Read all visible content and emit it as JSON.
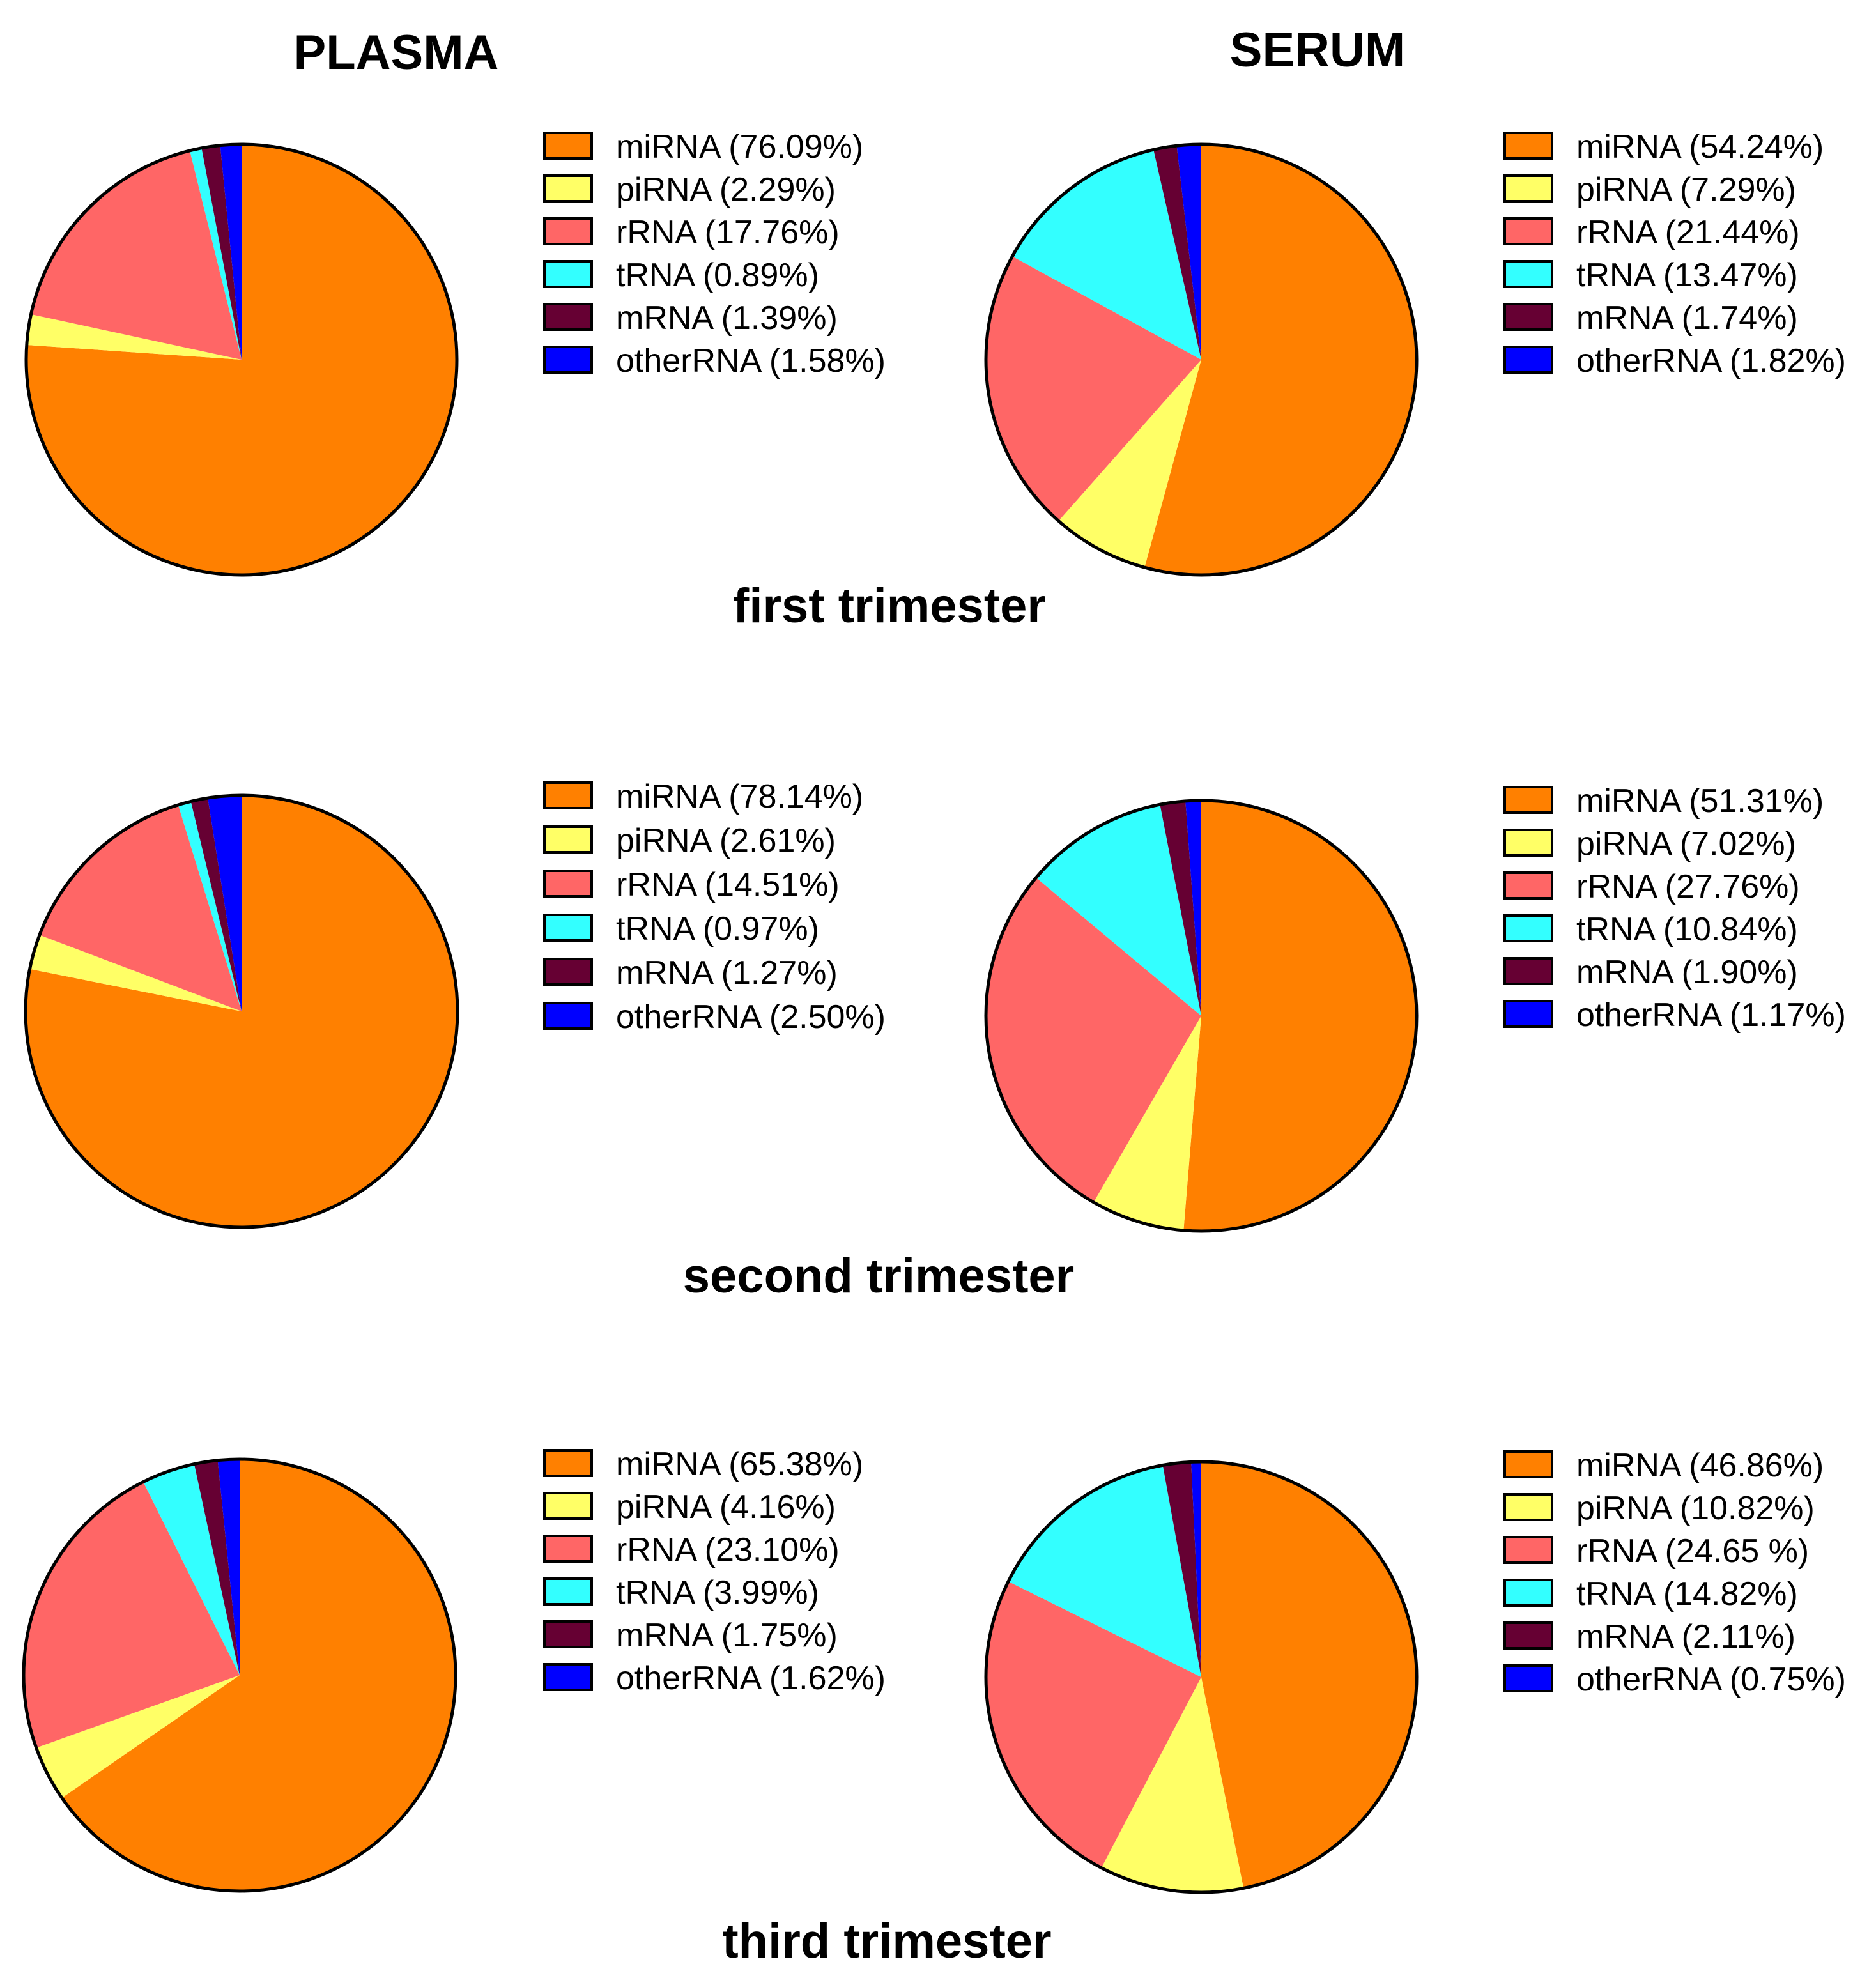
{
  "column_titles": [
    "PLASMA",
    "SERUM"
  ],
  "row_titles": [
    "first trimester",
    "second trimester",
    "third trimester"
  ],
  "colors": {
    "miRNA": "#FF8000",
    "piRNA": "#FFFF66",
    "rRNA": "#FF6666",
    "tRNA": "#33FFFF",
    "mRNA": "#660033",
    "otherRNA": "#0000FF"
  },
  "chart_data": [
    {
      "type": "pie",
      "title": "PLASMA - first trimester",
      "categories": [
        "miRNA",
        "piRNA",
        "rRNA",
        "tRNA",
        "mRNA",
        "otherRNA"
      ],
      "values": [
        76.09,
        2.29,
        17.76,
        0.89,
        1.39,
        1.58
      ],
      "legend_labels": [
        "miRNA (76.09%)",
        "piRNA (2.29%)",
        "rRNA (17.76%)",
        "tRNA (0.89%)",
        "mRNA (1.39%)",
        "otherRNA (1.58%)"
      ],
      "legend": "right"
    },
    {
      "type": "pie",
      "title": "SERUM - first trimester",
      "categories": [
        "miRNA",
        "piRNA",
        "rRNA",
        "tRNA",
        "mRNA",
        "otherRNA"
      ],
      "values": [
        54.24,
        7.29,
        21.44,
        13.47,
        1.74,
        1.82
      ],
      "legend_labels": [
        "miRNA (54.24%)",
        "piRNA (7.29%)",
        "rRNA (21.44%)",
        "tRNA (13.47%)",
        "mRNA (1.74%)",
        "otherRNA (1.82%)"
      ],
      "legend": "right"
    },
    {
      "type": "pie",
      "title": "PLASMA - second trimester",
      "categories": [
        "miRNA",
        "piRNA",
        "rRNA",
        "tRNA",
        "mRNA",
        "otherRNA"
      ],
      "values": [
        78.14,
        2.61,
        14.51,
        0.97,
        1.27,
        2.5
      ],
      "legend_labels": [
        "miRNA (78.14%)",
        "piRNA (2.61%)",
        "rRNA (14.51%)",
        "tRNA (0.97%)",
        "mRNA (1.27%)",
        "otherRNA (2.50%)"
      ],
      "legend": "right"
    },
    {
      "type": "pie",
      "title": "SERUM - second trimester",
      "categories": [
        "miRNA",
        "piRNA",
        "rRNA",
        "tRNA",
        "mRNA",
        "otherRNA"
      ],
      "values": [
        51.31,
        7.02,
        27.76,
        10.84,
        1.9,
        1.17
      ],
      "legend_labels": [
        "miRNA (51.31%)",
        "piRNA (7.02%)",
        "rRNA (27.76%)",
        "tRNA (10.84%)",
        "mRNA (1.90%)",
        "otherRNA (1.17%)"
      ],
      "legend": "right"
    },
    {
      "type": "pie",
      "title": "PLASMA - third trimester",
      "categories": [
        "miRNA",
        "piRNA",
        "rRNA",
        "tRNA",
        "mRNA",
        "otherRNA"
      ],
      "values": [
        65.38,
        4.16,
        23.1,
        3.99,
        1.75,
        1.62
      ],
      "legend_labels": [
        "miRNA (65.38%)",
        "piRNA (4.16%)",
        "rRNA (23.10%)",
        "tRNA (3.99%)",
        "mRNA (1.75%)",
        "otherRNA (1.62%)"
      ],
      "legend": "right"
    },
    {
      "type": "pie",
      "title": "SERUM - third trimester",
      "categories": [
        "miRNA",
        "piRNA",
        "rRNA",
        "tRNA",
        "mRNA",
        "otherRNA"
      ],
      "values": [
        46.86,
        10.82,
        24.65,
        14.82,
        2.11,
        0.75
      ],
      "legend_labels": [
        "miRNA (46.86%)",
        "piRNA (10.82%)",
        "rRNA (24.65 %)",
        "tRNA (14.82%)",
        "mRNA (2.11%)",
        "otherRNA (0.75%)"
      ],
      "legend": "right"
    }
  ]
}
